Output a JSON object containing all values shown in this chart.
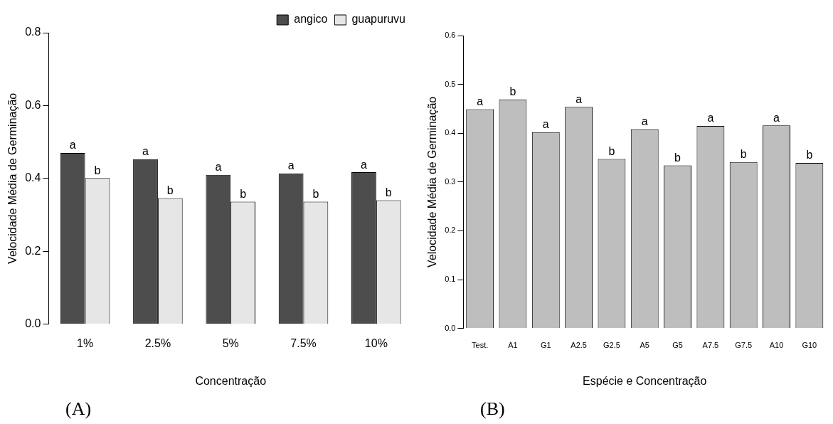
{
  "chart_data": [
    {
      "type": "bar",
      "xlabel": "Concentração",
      "ylabel": "Velocidade Média de Germinação",
      "categories": [
        "1%",
        "2.5%",
        "5%",
        "7.5%",
        "10%"
      ],
      "series": [
        {
          "name": "angico",
          "color": "#4d4d4d",
          "values": [
            0.47,
            0.453,
            0.41,
            0.414,
            0.417
          ],
          "value_labels": [
            "a",
            "a",
            "a",
            "a",
            "a"
          ]
        },
        {
          "name": "guapuruvu",
          "color": "#e6e6e6",
          "values": [
            0.401,
            0.346,
            0.336,
            0.336,
            0.34
          ],
          "value_labels": [
            "b",
            "b",
            "b",
            "b",
            "b"
          ]
        }
      ],
      "ylim": [
        0,
        0.8
      ],
      "yticks": [
        {
          "value": 0,
          "label": "0.0"
        },
        0.2,
        0.4,
        0.6,
        0.8
      ],
      "grid": false,
      "legend": "top right",
      "annotations": [
        "(A)"
      ]
    },
    {
      "type": "bar",
      "xlabel": "Espécie e Concentração",
      "ylabel": "Velocidade Média de Germinação",
      "categories": [
        "Test.",
        "A1",
        "G1",
        "A2.5",
        "G2.5",
        "A5",
        "G5",
        "A7.5",
        "G7.5",
        "A10",
        "G10"
      ],
      "series": [
        {
          "color": "#bebebe",
          "values": [
            0.449,
            0.469,
            0.402,
            0.454,
            0.347,
            0.408,
            0.334,
            0.415,
            0.341,
            0.416,
            0.339
          ],
          "value_labels": [
            "a",
            "b",
            "a",
            "a",
            "b",
            "a",
            "b",
            "a",
            "b",
            "a",
            "b"
          ]
        }
      ],
      "ylim": [
        0,
        0.6
      ],
      "yticks": [
        {
          "value": 0,
          "label": "0.0"
        },
        0.1,
        0.2,
        0.3,
        0.4,
        0.5,
        0.6
      ],
      "grid": false,
      "legend": false,
      "annotations": [
        "(B)"
      ]
    }
  ]
}
